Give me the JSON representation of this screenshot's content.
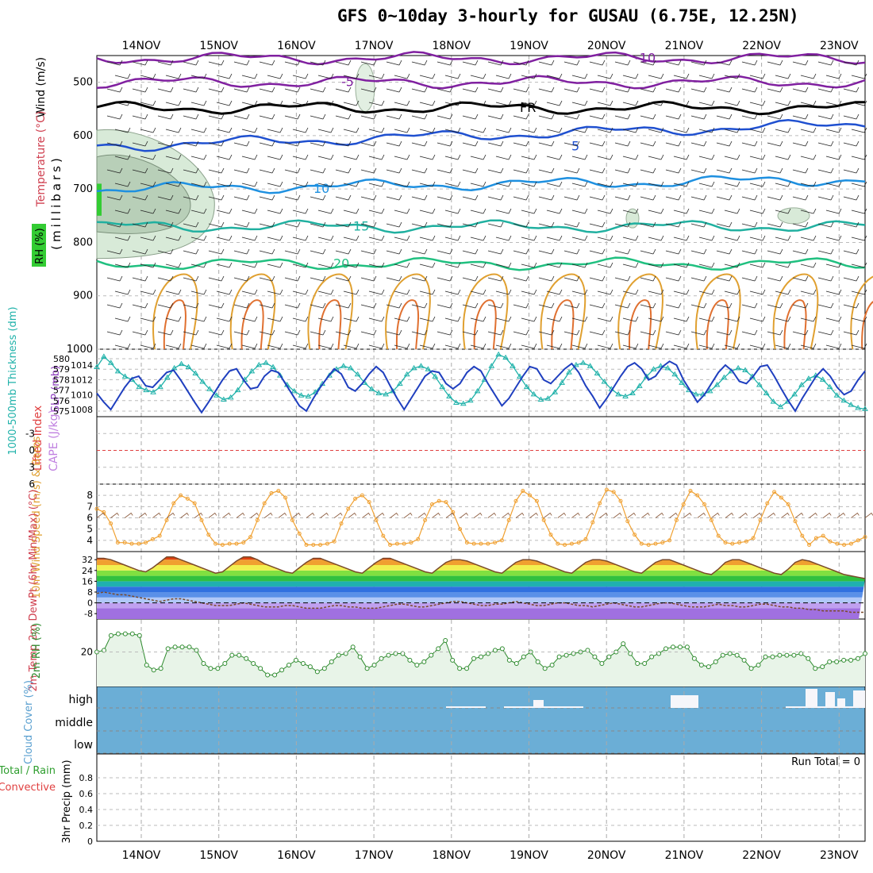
{
  "title": "GFS 0~10day 3-hourly for GUSAU (6.75E, 12.25N)",
  "dates": [
    "14NOV",
    "15NOV",
    "16NOV",
    "17NOV",
    "18NOV",
    "19NOV",
    "20NOV",
    "21NOV",
    "22NOV",
    "23NOV"
  ],
  "colors": {
    "grid": "#aaaaaa",
    "thickness": "#20b2aa",
    "slp": "#1f3fbf",
    "wind": "#f0a030",
    "rh": "#2e8b2e",
    "cloud": "#6baed6",
    "lifted": "#e04040",
    "cape": "#c080e0"
  },
  "chart_data": [
    {
      "type": "line",
      "panel": "upper-air",
      "ylabel": "(millibars)",
      "side_labels": [
        "Wind (m/s)",
        "Temperature (°C)",
        "RH (%)"
      ],
      "y_ticks": [
        500,
        600,
        700,
        800,
        900,
        1000
      ],
      "ylim": [
        1000,
        450
      ],
      "isotherm_labels": [
        "-10",
        "-5",
        "FR",
        "5",
        "10",
        "15",
        "20"
      ],
      "isotherms": [
        {
          "name": "-10",
          "pressure": 455
        },
        {
          "name": "-5",
          "pressure": 500
        },
        {
          "name": "FR",
          "pressure": 548
        },
        {
          "name": "5",
          "pressure": 620
        },
        {
          "name": "10",
          "pressure": 700
        },
        {
          "name": "15",
          "pressure": 770
        },
        {
          "name": "20",
          "pressure": 840
        }
      ],
      "rh_label": "10"
    },
    {
      "type": "line",
      "panel": "thickness-slp",
      "ylabel_left": "1000-500mb Thickness (dm)",
      "ylabel_right": "SLP (mb)",
      "left_ticks": [
        575,
        576,
        577,
        578,
        579,
        580
      ],
      "right_ticks": [
        1008,
        1010,
        1012,
        1014
      ],
      "series": [
        {
          "name": "1000-500mb Thickness (dm)",
          "values": [
            579.2,
            580.2,
            579.6,
            578.8,
            578.3,
            578.0,
            577.3,
            577.0,
            576.8,
            577.3,
            578.2,
            579.1,
            579.5,
            579.2,
            578.6,
            577.8,
            577.1,
            576.5,
            576.1,
            576.3,
            577.0,
            578.0,
            578.8,
            579.4,
            579.6,
            579.2,
            578.4,
            577.5,
            576.9,
            576.5,
            576.4,
            576.8,
            577.6,
            578.4,
            579.0,
            579.3,
            579.1,
            578.5,
            577.7,
            577.1,
            576.7,
            576.6,
            576.9,
            577.6,
            578.5,
            579.1,
            579.3,
            579.0,
            578.3,
            577.3,
            576.4,
            575.8,
            575.7,
            576.0,
            576.9,
            578.0,
            579.3,
            580.4,
            580.1,
            579.3,
            578.3,
            577.3,
            576.6,
            576.1,
            576.2,
            576.8,
            577.7,
            578.7,
            579.4,
            579.6,
            579.3,
            578.6,
            577.8,
            577.1,
            576.6,
            576.4,
            576.7,
            577.4,
            578.3,
            579.0,
            579.3,
            579.1,
            578.5,
            577.7,
            577.0,
            576.6,
            576.6,
            576.9,
            577.5,
            578.2,
            578.8,
            579.1,
            578.9,
            578.3,
            577.5,
            576.7,
            575.9,
            575.4,
            575.9,
            576.6,
            577.5,
            578.1,
            578.4,
            578.0,
            577.3,
            576.5,
            576.0,
            575.6,
            575.3,
            575.2
          ]
        },
        {
          "name": "SLP (mb)",
          "values": [
            1010.2,
            1009.0,
            1008.0,
            1009.5,
            1011.0,
            1012.2,
            1012.5,
            1011.2,
            1011.0,
            1012.0,
            1013.0,
            1013.3,
            1012.0,
            1010.5,
            1009.0,
            1007.6,
            1009.0,
            1010.5,
            1012.0,
            1013.2,
            1013.5,
            1012.0,
            1010.8,
            1011.0,
            1012.5,
            1013.3,
            1013.0,
            1011.5,
            1010.0,
            1008.5,
            1007.8,
            1009.5,
            1011.0,
            1012.3,
            1013.5,
            1012.8,
            1011.0,
            1010.5,
            1011.5,
            1012.8,
            1013.8,
            1013.0,
            1011.2,
            1009.5,
            1008.0,
            1009.5,
            1011.0,
            1012.5,
            1013.2,
            1013.0,
            1011.5,
            1010.8,
            1011.5,
            1013.0,
            1013.8,
            1013.2,
            1011.5,
            1010.0,
            1008.5,
            1009.5,
            1011.0,
            1012.5,
            1013.8,
            1013.5,
            1012.0,
            1011.5,
            1012.5,
            1013.5,
            1014.2,
            1013.0,
            1011.2,
            1009.8,
            1008.2,
            1009.5,
            1011.0,
            1012.5,
            1013.8,
            1014.3,
            1013.5,
            1012.0,
            1012.5,
            1013.8,
            1014.5,
            1014.0,
            1012.0,
            1010.5,
            1009.0,
            1010.0,
            1011.5,
            1013.0,
            1014.0,
            1013.2,
            1011.8,
            1011.5,
            1012.5,
            1013.8,
            1014.0,
            1012.5,
            1010.8,
            1009.2,
            1007.8,
            1009.5,
            1011.0,
            1012.5,
            1013.5,
            1012.5,
            1011.0,
            1010.0,
            1010.5,
            1012.0,
            1013.2
          ]
        }
      ]
    },
    {
      "type": "line",
      "panel": "lifted-cape",
      "ylabel_left": "Lifted Index",
      "ylabel_right": "CAPE (J/kg)",
      "left_ticks": [
        -3,
        0,
        3,
        6
      ],
      "ylim": [
        -6,
        6
      ]
    },
    {
      "type": "line",
      "panel": "wind10m",
      "ylabel": "10m Wind Speed (m/s) & Barbs",
      "y_ticks": [
        4,
        5,
        6,
        7,
        8
      ],
      "ylim": [
        3,
        9
      ],
      "series": [
        {
          "name": "10m Wind Speed",
          "values": [
            6.8,
            6.5,
            5.5,
            3.8,
            3.8,
            3.7,
            3.7,
            3.8,
            4.1,
            4.4,
            5.8,
            7.3,
            8.0,
            7.7,
            7.3,
            5.8,
            4.5,
            3.7,
            3.6,
            3.7,
            3.7,
            3.8,
            4.3,
            5.8,
            7.3,
            8.2,
            8.4,
            7.8,
            5.8,
            4.6,
            3.6,
            3.6,
            3.6,
            3.7,
            3.9,
            5.5,
            6.8,
            7.7,
            8.0,
            7.4,
            5.8,
            4.4,
            3.6,
            3.7,
            3.7,
            3.8,
            4.1,
            5.8,
            7.2,
            7.5,
            7.4,
            6.5,
            5.0,
            3.8,
            3.7,
            3.7,
            3.7,
            3.8,
            4.0,
            5.8,
            7.5,
            8.4,
            8.0,
            7.5,
            5.8,
            4.5,
            3.7,
            3.6,
            3.7,
            3.8,
            4.1,
            5.6,
            7.3,
            8.5,
            8.3,
            7.5,
            5.7,
            4.5,
            3.7,
            3.6,
            3.7,
            3.8,
            4.0,
            5.8,
            7.2,
            8.4,
            8.0,
            7.2,
            5.8,
            4.4,
            3.8,
            3.7,
            3.8,
            3.9,
            4.2,
            5.8,
            7.3,
            8.3,
            7.8,
            7.2,
            5.7,
            4.4,
            3.6,
            4.2,
            4.4,
            3.9,
            3.7,
            3.6,
            3.7,
            4.0,
            4.3
          ]
        }
      ]
    },
    {
      "type": "area",
      "panel": "temp2m",
      "ylabel": "2m Temp 2m DewPt (6hr Min/Max) (°C)",
      "y_ticks": [
        -8,
        0,
        8,
        16,
        24,
        32
      ],
      "ylim": [
        -12,
        38
      ],
      "series": [
        {
          "name": "2m Temp",
          "values": [
            33,
            33,
            32,
            30,
            28,
            26,
            24,
            23,
            26,
            30,
            34,
            34,
            32,
            30,
            28,
            26,
            24,
            22,
            23,
            27,
            31,
            34,
            34,
            32,
            29,
            27,
            25,
            23,
            22,
            26,
            30,
            33,
            33,
            31,
            29,
            27,
            25,
            23,
            22,
            26,
            30,
            33,
            33,
            31,
            29,
            27,
            25,
            23,
            22,
            26,
            30,
            32,
            32,
            31,
            29,
            27,
            25,
            23,
            22,
            26,
            30,
            32,
            32,
            31,
            29,
            27,
            25,
            23,
            22,
            26,
            30,
            32,
            32,
            31,
            29,
            27,
            25,
            23,
            22,
            26,
            30,
            32,
            32,
            30,
            28,
            26,
            24,
            22,
            21,
            25,
            30,
            32,
            32,
            30,
            28,
            26,
            24,
            22,
            21,
            25,
            30,
            32,
            31,
            29,
            27,
            25,
            23,
            21,
            20,
            19,
            18
          ]
        },
        {
          "name": "2m DewPt",
          "values": [
            7,
            8,
            7,
            6,
            6,
            5,
            4,
            3,
            2,
            1,
            2,
            3,
            3,
            2,
            1,
            0,
            -1,
            -2,
            -2,
            -2,
            -1,
            0,
            -1,
            -2,
            -3,
            -3,
            -3,
            -2,
            -2,
            -3,
            -4,
            -4,
            -4,
            -3,
            -2,
            -2,
            -3,
            -3,
            -4,
            -4,
            -4,
            -3,
            -2,
            -1,
            -1,
            -2,
            -3,
            -3,
            -2,
            -1,
            0,
            1,
            1,
            0,
            -1,
            -2,
            -2,
            -1,
            -1,
            0,
            1,
            0,
            -1,
            -2,
            -2,
            -1,
            0,
            0,
            -1,
            -2,
            -2,
            -3,
            -2,
            -1,
            0,
            -1,
            -2,
            -3,
            -3,
            -2,
            -1,
            0,
            0,
            -1,
            -2,
            -3,
            -3,
            -3,
            -2,
            -1,
            -2,
            -2,
            -3,
            -3,
            -2,
            -1,
            -1,
            -2,
            -3,
            -3,
            -4,
            -4,
            -5,
            -5,
            -6,
            -6,
            -6,
            -6,
            -7,
            -7,
            -7
          ]
        }
      ]
    },
    {
      "type": "area",
      "panel": "rh2m",
      "ylabel": "2m RH (%)",
      "y_ticks": [
        20
      ],
      "ylim": [
        -1,
        40
      ],
      "series": [
        {
          "name": "2m RH",
          "values": [
            20,
            21,
            30,
            31,
            31,
            31,
            30,
            12,
            9,
            10,
            22,
            23,
            23,
            23,
            21,
            13,
            10,
            10,
            13,
            18,
            18,
            16,
            13,
            10,
            6,
            6,
            9,
            12,
            15,
            13,
            11,
            8,
            10,
            14,
            18,
            19,
            23,
            17,
            10,
            12,
            16,
            18,
            19,
            19,
            15,
            12,
            14,
            18,
            22,
            27,
            15,
            10,
            10,
            16,
            17,
            19,
            21,
            22,
            15,
            13,
            17,
            20,
            14,
            10,
            12,
            17,
            18,
            19,
            20,
            21,
            17,
            13,
            17,
            20,
            25,
            19,
            13,
            13,
            17,
            19,
            22,
            23,
            23,
            23,
            16,
            12,
            11,
            14,
            18,
            19,
            18,
            15,
            10,
            12,
            17,
            17,
            18,
            18,
            18,
            19,
            16,
            10,
            11,
            14,
            14,
            15,
            15,
            16,
            19
          ]
        }
      ]
    },
    {
      "type": "bar",
      "panel": "cloud",
      "ylabel": "Cloud Cover (%)",
      "levels": [
        "high",
        "middle",
        "low"
      ]
    },
    {
      "type": "bar",
      "panel": "precip",
      "ylabel": "3hr Precip (mm)",
      "legend": [
        "Total / Rain",
        "Convective"
      ],
      "y_ticks": [
        "0",
        "0.2",
        "0.4",
        "0.6",
        "0.8"
      ],
      "ylim": [
        0,
        1
      ],
      "run_total": "Run Total = 0"
    }
  ]
}
